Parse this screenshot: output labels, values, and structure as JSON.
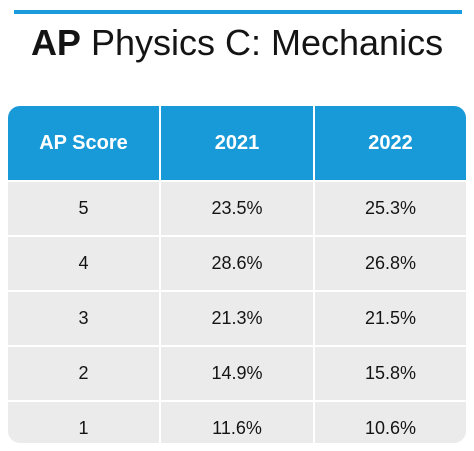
{
  "title_bold": "AP",
  "title_rest": " Physics C: Mechanics",
  "colors": {
    "accent": "#1a9bdb",
    "header_bg": "#189ad8",
    "row_bg": "#ebebeb"
  },
  "chart_data": {
    "type": "table",
    "title": "AP Physics C: Mechanics",
    "columns": [
      "AP Score",
      "2021",
      "2022"
    ],
    "rows": [
      [
        "5",
        "23.5%",
        "25.3%"
      ],
      [
        "4",
        "28.6%",
        "26.8%"
      ],
      [
        "3",
        "21.3%",
        "21.5%"
      ],
      [
        "2",
        "14.9%",
        "15.8%"
      ],
      [
        "1",
        "11.6%",
        "10.6%"
      ]
    ]
  }
}
